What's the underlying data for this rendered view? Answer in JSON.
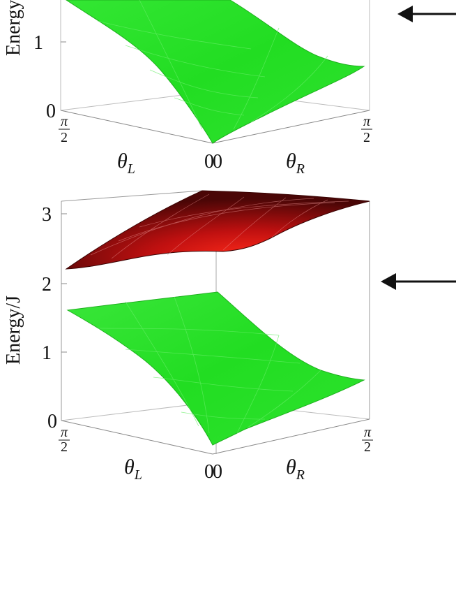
{
  "chart_data": [
    {
      "type": "surface3d",
      "panel": "top",
      "ylabel": "Energy/J",
      "ylabel_visible": "Energy",
      "z_ticks": [
        "0",
        "1"
      ],
      "x_axis_label": {
        "main": "θ",
        "sub": "L"
      },
      "y_axis_label": {
        "main": "θ",
        "sub": "R"
      },
      "x_ticks": {
        "start": "0",
        "end_num": "π",
        "end_den": "2"
      },
      "y_ticks": {
        "start": "0",
        "end_num": "π",
        "end_den": "2"
      },
      "arrow": "←",
      "series": [
        {
          "color": "#22dd22",
          "surface_samples": [
            {
              "theta_L": 1.5708,
              "theta_R": 0,
              "energy": 1.8
            },
            {
              "theta_L": 0,
              "theta_R": 0,
              "energy": 0.0
            },
            {
              "theta_L": 0,
              "theta_R": 1.5708,
              "energy": 0.65
            }
          ]
        }
      ]
    },
    {
      "type": "surface3d",
      "panel": "bottom",
      "ylabel": "Energy/J",
      "z_ticks": [
        "0",
        "1",
        "2",
        "3"
      ],
      "zlim": [
        0,
        3.2
      ],
      "x_axis_label": {
        "main": "θ",
        "sub": "L"
      },
      "y_axis_label": {
        "main": "θ",
        "sub": "R"
      },
      "x_ticks": {
        "start": "0",
        "end_num": "π",
        "end_den": "2"
      },
      "y_ticks": {
        "start": "0",
        "end_num": "π",
        "end_den": "2"
      },
      "arrow": "←",
      "series": [
        {
          "color": "#22dd22",
          "surface_samples": [
            {
              "theta_L": 1.5708,
              "theta_R": 0,
              "energy": 1.6
            },
            {
              "theta_L": 1.5708,
              "theta_R": 1.5708,
              "energy": 1.85
            },
            {
              "theta_L": 0,
              "theta_R": 0,
              "energy": 0.0
            },
            {
              "theta_L": 0,
              "theta_R": 1.5708,
              "energy": 0.6
            }
          ]
        },
        {
          "color": "#cc1111",
          "surface_samples": [
            {
              "theta_L": 1.5708,
              "theta_R": 0,
              "energy": 2.2
            },
            {
              "theta_L": 1.5708,
              "theta_R": 1.5708,
              "energy": 3.2
            },
            {
              "theta_L": 0,
              "theta_R": 0,
              "energy": 2.5
            },
            {
              "theta_L": 0,
              "theta_R": 1.5708,
              "energy": 3.2
            }
          ]
        }
      ]
    }
  ]
}
